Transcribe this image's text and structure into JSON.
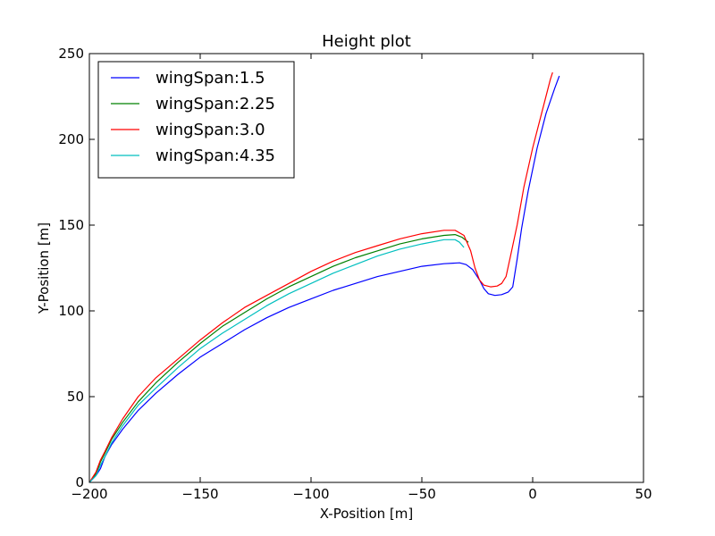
{
  "chart_data": {
    "type": "line",
    "title": "Height plot",
    "xlabel": "X-Position [m]",
    "ylabel": "Y-Position [m]",
    "xlim": [
      -200,
      50
    ],
    "ylim": [
      0,
      250
    ],
    "xticks": [
      -200,
      -150,
      -100,
      -50,
      0,
      50
    ],
    "yticks": [
      0,
      50,
      100,
      150,
      200,
      250
    ],
    "xtick_labels": [
      "−200",
      "−150",
      "−100",
      "−50",
      "0",
      "50"
    ],
    "ytick_labels": [
      "0",
      "50",
      "100",
      "150",
      "200",
      "250"
    ],
    "grid": false,
    "legend_position": "upper-left",
    "series": [
      {
        "name": "wingSpan:1.5",
        "color": "#0000ff",
        "x": [
          -200,
          -197,
          -195,
          -193,
          -190,
          -185,
          -178,
          -170,
          -160,
          -150,
          -140,
          -130,
          -120,
          -110,
          -100,
          -90,
          -80,
          -70,
          -60,
          -50,
          -40,
          -33,
          -30,
          -27,
          -24,
          -22,
          -20,
          -17,
          -14,
          -11,
          -9,
          -7,
          -5,
          -2,
          2,
          6,
          10,
          12
        ],
        "y": [
          0,
          4,
          8,
          15,
          22,
          31,
          42,
          52,
          63,
          73,
          81,
          89,
          96,
          102,
          107,
          112,
          116,
          120,
          123,
          126,
          127.5,
          128,
          127,
          124,
          118,
          113,
          110,
          109,
          109.5,
          111,
          114,
          130,
          148,
          170,
          195,
          215,
          230,
          237
        ]
      },
      {
        "name": "wingSpan:2.25",
        "color": "#008000",
        "x": [
          -200,
          -197,
          -195,
          -193,
          -190,
          -185,
          -178,
          -170,
          -160,
          -150,
          -140,
          -130,
          -120,
          -110,
          -100,
          -90,
          -80,
          -70,
          -60,
          -50,
          -40,
          -35,
          -32,
          -29
        ],
        "y": [
          0,
          5,
          12,
          17,
          25,
          35,
          47,
          58,
          70,
          81,
          91,
          99,
          107,
          114,
          120,
          126,
          131,
          135,
          139,
          142,
          144,
          144.5,
          143,
          140
        ]
      },
      {
        "name": "wingSpan:3.0",
        "color": "#ff0000",
        "x": [
          -200,
          -197,
          -195,
          -193,
          -190,
          -185,
          -178,
          -170,
          -160,
          -150,
          -140,
          -130,
          -120,
          -110,
          -100,
          -90,
          -80,
          -70,
          -60,
          -50,
          -40,
          -35,
          -31,
          -28,
          -26,
          -24,
          -22,
          -19,
          -16,
          -14,
          -12,
          -10,
          -7,
          -4,
          0,
          4,
          8,
          9
        ],
        "y": [
          0,
          6,
          13,
          18,
          26,
          37,
          50,
          61,
          72,
          83,
          93,
          102,
          109,
          116,
          123,
          129,
          134,
          138,
          142,
          145,
          147,
          147,
          144,
          135,
          125,
          118,
          115,
          114,
          114.5,
          116,
          120,
          132,
          150,
          172,
          195,
          215,
          235,
          239
        ]
      },
      {
        "name": "wingSpan:4.35",
        "color": "#00bfbf",
        "x": [
          -200,
          -197,
          -195,
          -193,
          -190,
          -185,
          -178,
          -170,
          -160,
          -150,
          -140,
          -130,
          -120,
          -110,
          -100,
          -90,
          -80,
          -70,
          -60,
          -50,
          -40,
          -35,
          -33,
          -31
        ],
        "y": [
          0,
          4,
          10,
          15,
          23,
          33,
          45,
          55,
          67,
          78,
          87,
          95,
          103,
          110,
          116,
          122,
          127,
          132,
          136,
          139,
          141.5,
          141.5,
          140,
          137
        ]
      }
    ]
  }
}
